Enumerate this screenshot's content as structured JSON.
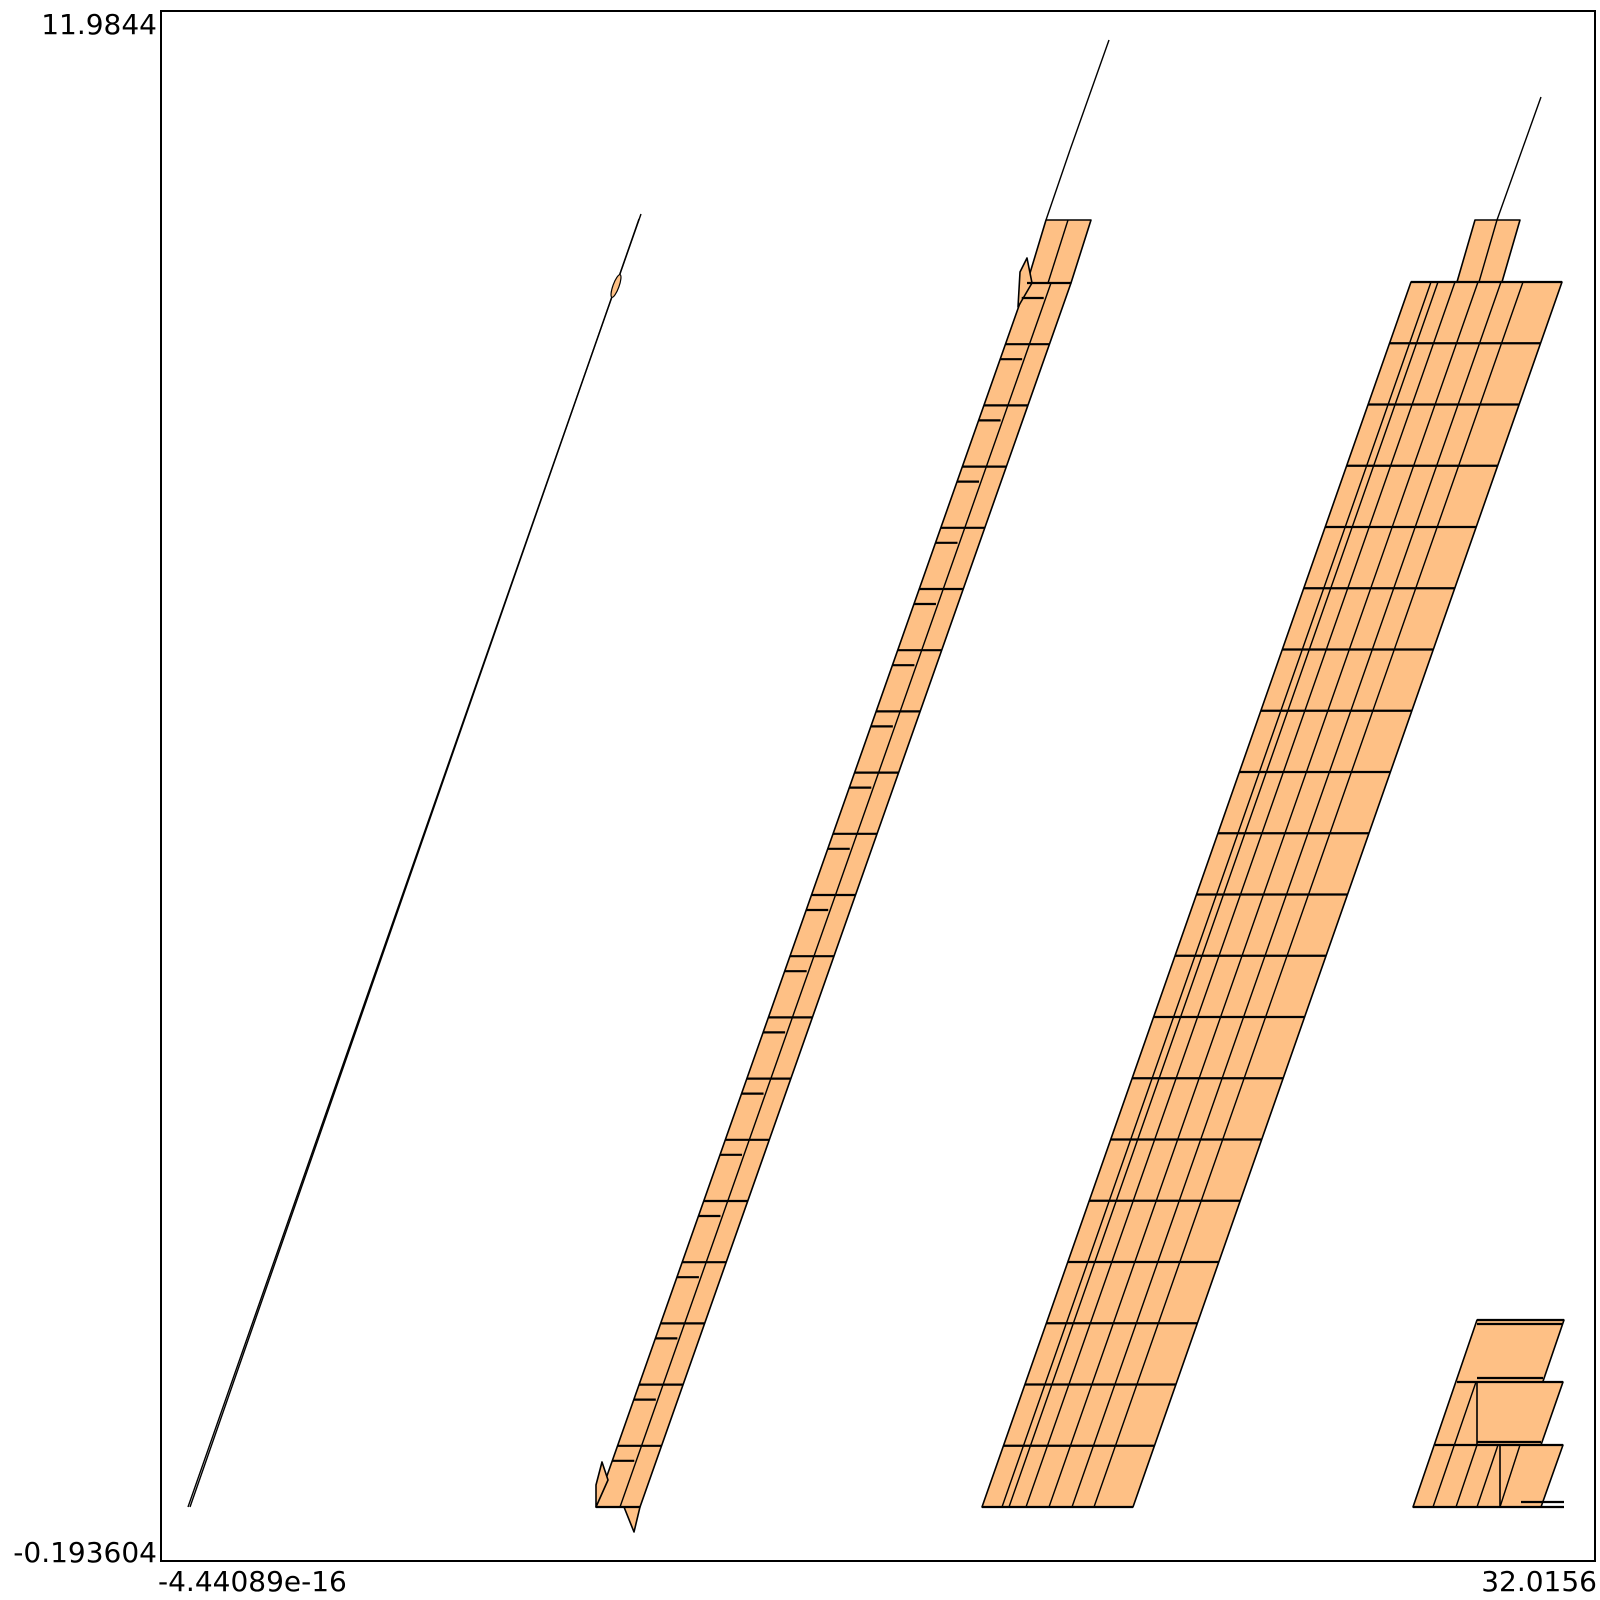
{
  "plot": {
    "x_min_label": "-4.44089e-16",
    "x_max_label": "32.0156",
    "y_min_label": "-0.193604",
    "y_max_label": "11.9844",
    "fill_color": "#fec085",
    "frame_color": "#000000"
  }
}
